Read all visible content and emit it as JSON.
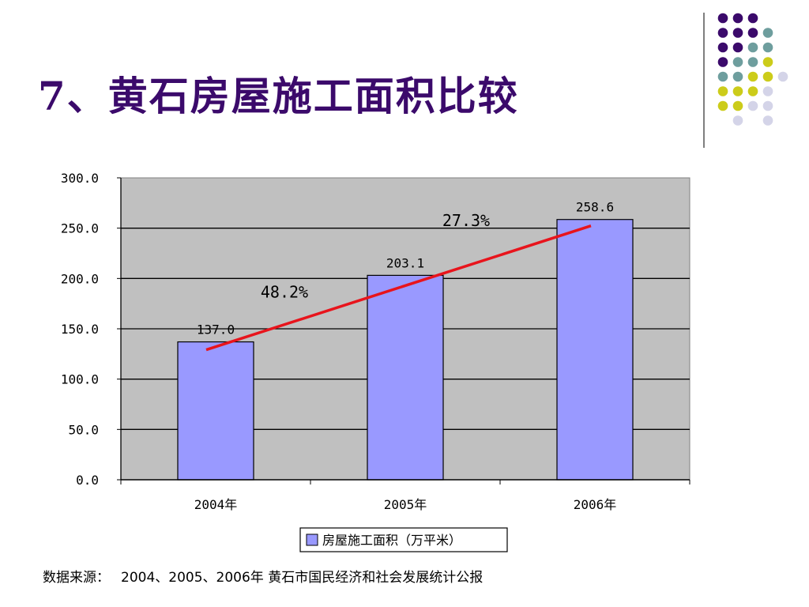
{
  "slide": {
    "title": "7、黄石房屋施工面积比较",
    "source_label": "数据来源：",
    "source_text": "2004、2005、2006年 黄石市国民经济和社会发展统计公报"
  },
  "colors": {
    "title": "#3b0a6b",
    "bar": "#9999ff",
    "plot_bg": "#c0c0c0",
    "trend": "#e8141c",
    "dot_purple": "#3b0a6b",
    "dot_teal": "#6e9e9e",
    "dot_yellow": "#cccc1a",
    "dot_lavender": "#d4d4e8"
  },
  "chart_data": {
    "type": "bar",
    "categories": [
      "2004年",
      "2005年",
      "2006年"
    ],
    "series": [
      {
        "name": "房屋施工面积（万平米）",
        "values": [
          137.0,
          203.1,
          258.6
        ]
      }
    ],
    "value_labels": [
      "137.0",
      "203.1",
      "258.6"
    ],
    "ylim": [
      0,
      300
    ],
    "yticks": [
      "0.0",
      "50.0",
      "100.0",
      "150.0",
      "200.0",
      "250.0",
      "300.0"
    ],
    "ytick_values": [
      0,
      50,
      100,
      150,
      200,
      250,
      300
    ],
    "grid": true,
    "legend": "bottom-center",
    "trend_line": {
      "from_category": "2004年",
      "to_category": "2006年"
    },
    "growth_annotations": [
      "48.2%",
      "27.3%"
    ]
  }
}
